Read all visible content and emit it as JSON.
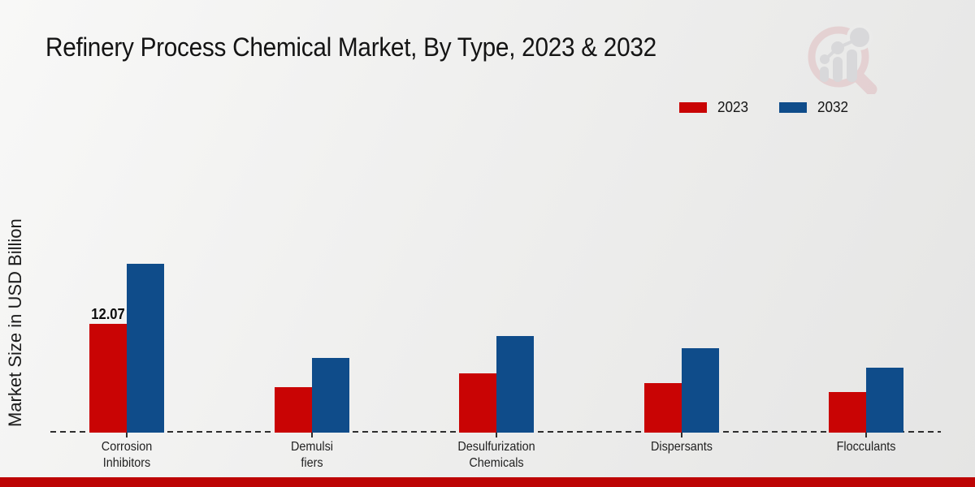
{
  "title": "Refinery Process Chemical Market, By Type, 2023 & 2032",
  "y_axis_label": "Market Size in USD Billion",
  "legend": [
    {
      "label": "2023",
      "color": "#c90404"
    },
    {
      "label": "2032",
      "color": "#0f4c8a"
    }
  ],
  "watermark": {
    "name": "magnifier-bar-chart-logo",
    "circle_color": "#ddb3b7",
    "glyph_color": "#c3c3c8"
  },
  "footer": {
    "color": "#bd0404"
  },
  "colors": {
    "series_2023": "#c90404",
    "series_2032": "#0f4c8a",
    "baseline": "#2e2e2e",
    "background": "#efefee"
  },
  "chart_data": {
    "type": "bar",
    "title": "Refinery Process Chemical Market, By Type, 2023 & 2032",
    "xlabel": "",
    "ylabel": "Market Size in USD Billion",
    "categories": [
      "Corrosion Inhibitors",
      "Demulsifiers",
      "Desulfurization Chemicals",
      "Dispersants",
      "Flocculants"
    ],
    "category_display_lines": [
      [
        "Corrosion",
        "Inhibitors"
      ],
      [
        "Demulsi",
        "fiers"
      ],
      [
        "Desulfurization",
        "Chemicals"
      ],
      [
        "Dispersants"
      ],
      [
        "Flocculants"
      ]
    ],
    "series": [
      {
        "name": "2023",
        "color": "#c90404",
        "values": [
          12.07,
          5.05,
          6.6,
          5.5,
          4.5
        ]
      },
      {
        "name": "2032",
        "color": "#0f4c8a",
        "values": [
          18.7,
          8.3,
          10.7,
          9.4,
          7.2
        ]
      }
    ],
    "value_labels": [
      {
        "series_index": 0,
        "category_index": 0,
        "text": "12.07"
      }
    ],
    "ylim": [
      0,
      21
    ],
    "grid": false,
    "baseline_style": "dashed",
    "legend_position": "top-right"
  }
}
